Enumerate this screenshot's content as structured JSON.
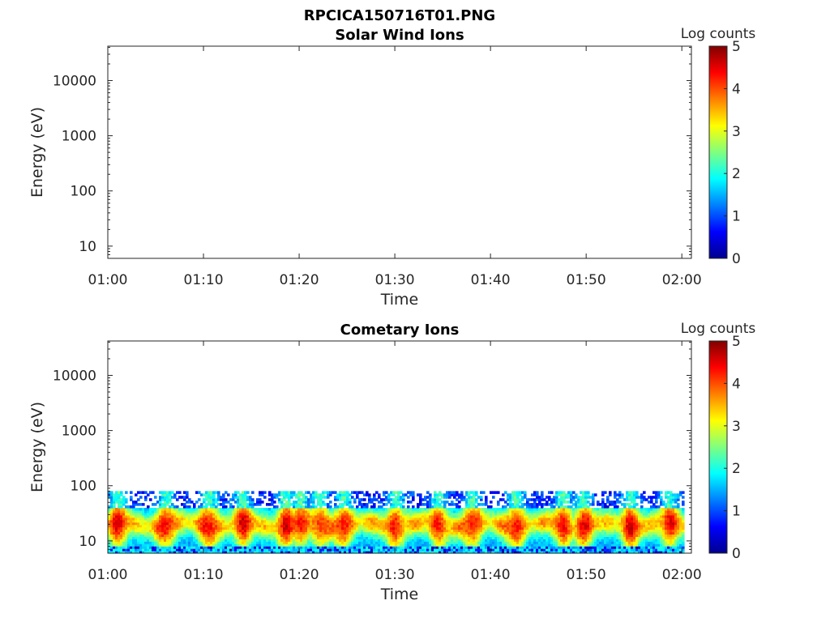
{
  "figure_title": "RPCICA150716T01.PNG",
  "colors": {
    "axis": "#262626",
    "colormap": "jet",
    "colormap_stops": [
      "#00008f",
      "#0000ff",
      "#00ffff",
      "#ffff00",
      "#ff0000",
      "#800000"
    ]
  },
  "chart_data": [
    {
      "type": "heatmap",
      "title": "Solar Wind Ions",
      "xlabel": "Time",
      "ylabel": "Energy (eV)",
      "x_tick_labels": [
        "01:00",
        "01:10",
        "01:20",
        "01:30",
        "01:40",
        "01:50",
        "02:00"
      ],
      "x_tick_values_min": [
        0,
        10,
        20,
        30,
        40,
        50,
        60
      ],
      "xlim_min": [
        0,
        61
      ],
      "y_scale": "log",
      "y_tick_labels": [
        "10",
        "100",
        "1000",
        "10000"
      ],
      "y_tick_values": [
        10,
        100,
        1000,
        10000
      ],
      "ylim": [
        6,
        42000
      ],
      "colorbar": {
        "label": "Log counts",
        "ticks": [
          "0",
          "1",
          "2",
          "3",
          "4",
          "5"
        ],
        "range": [
          0,
          5
        ]
      },
      "grid": false,
      "data_present": false
    },
    {
      "type": "heatmap",
      "title": "Cometary Ions",
      "xlabel": "Time",
      "ylabel": "Energy (eV)",
      "x_tick_labels": [
        "01:00",
        "01:10",
        "01:20",
        "01:30",
        "01:40",
        "01:50",
        "02:00"
      ],
      "x_tick_values_min": [
        0,
        10,
        20,
        30,
        40,
        50,
        60
      ],
      "xlim_min": [
        0,
        61
      ],
      "y_scale": "log",
      "y_tick_labels": [
        "10",
        "100",
        "1000",
        "10000"
      ],
      "y_tick_values": [
        10,
        100,
        1000,
        10000
      ],
      "ylim": [
        6,
        42000
      ],
      "colorbar": {
        "label": "Log counts",
        "ticks": [
          "0",
          "1",
          "2",
          "3",
          "4",
          "5"
        ],
        "range": [
          0,
          5
        ]
      },
      "grid": false,
      "data_present": true,
      "data_energy_range_eV": [
        6,
        80
      ],
      "peak_energy_eV": 20,
      "peak_log_counts": 4,
      "burst_times_min": [
        1,
        6,
        10.5,
        14,
        18.5,
        20,
        22,
        24.5,
        30,
        34.5,
        38,
        42.5,
        47.5,
        49.5,
        54.5,
        58.5
      ]
    }
  ]
}
